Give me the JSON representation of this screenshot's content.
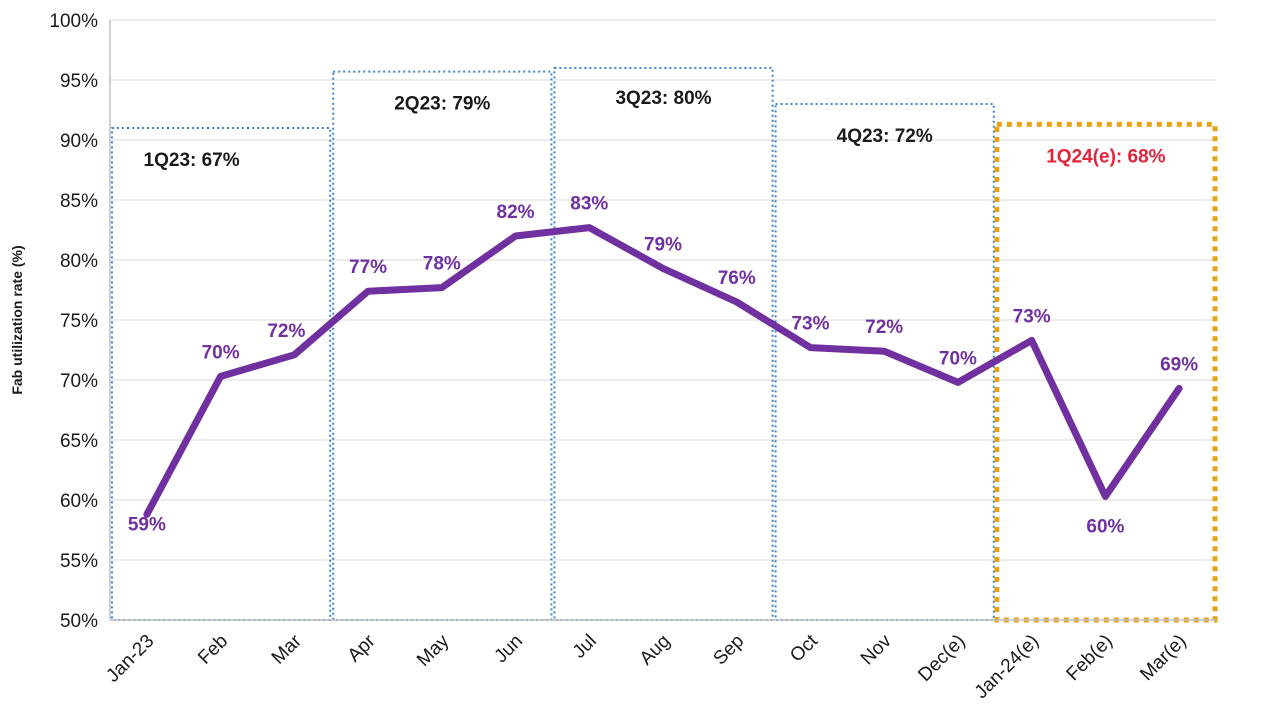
{
  "chart_data": {
    "type": "line",
    "title": "",
    "xlabel": "",
    "ylabel": "Fab utilization rate (%)",
    "ylim": [
      50,
      100
    ],
    "y_ticks": [
      "50%",
      "55%",
      "60%",
      "65%",
      "70%",
      "75%",
      "80%",
      "85%",
      "90%",
      "95%",
      "100%"
    ],
    "y_tick_values": [
      50,
      55,
      60,
      65,
      70,
      75,
      80,
      85,
      90,
      95,
      100
    ],
    "grid": true,
    "categories": [
      "Jan-23",
      "Feb",
      "Mar",
      "Apr",
      "May",
      "Jun",
      "Jul",
      "Aug",
      "Sep",
      "Oct",
      "Nov",
      "Dec(e)",
      "Jan-24(e)",
      "Feb(e)",
      "Mar(e)"
    ],
    "series": [
      {
        "name": "Fab utilization rate",
        "values": [
          58.8,
          70.3,
          72.1,
          77.4,
          77.7,
          82.0,
          82.7,
          79.3,
          76.5,
          72.7,
          72.4,
          69.8,
          73.3,
          60.3,
          69.3
        ],
        "labels": [
          "59%",
          "70%",
          "72%",
          "77%",
          "78%",
          "82%",
          "83%",
          "79%",
          "76%",
          "73%",
          "72%",
          "70%",
          "73%",
          "60%",
          "69%"
        ],
        "color": "#7030a0"
      }
    ],
    "quarters": [
      {
        "label": "1Q23: 67%",
        "start": 0,
        "end": 2,
        "top": 91,
        "style": "dotted-blue"
      },
      {
        "label": "2Q23: 79%",
        "start": 3,
        "end": 5,
        "top": 95.7,
        "style": "dotted-blue"
      },
      {
        "label": "3Q23: 80%",
        "start": 6,
        "end": 8,
        "top": 96,
        "style": "dotted-blue"
      },
      {
        "label": "4Q23: 72%",
        "start": 9,
        "end": 11,
        "top": 93,
        "style": "dotted-blue"
      },
      {
        "label": "1Q24(e): 68%",
        "start": 12,
        "end": 14,
        "top": 91.3,
        "style": "dotted-orange"
      }
    ],
    "colors": {
      "line": "#7030a0",
      "label": "#7030a0",
      "quarter_border": "#3a86d0",
      "forecast_border": "#e8a317",
      "forecast_label": "#e0243a",
      "quarter_label": "#1a1a1a",
      "grid": "#d9d9d9",
      "axis": "#bfbfbf"
    }
  }
}
